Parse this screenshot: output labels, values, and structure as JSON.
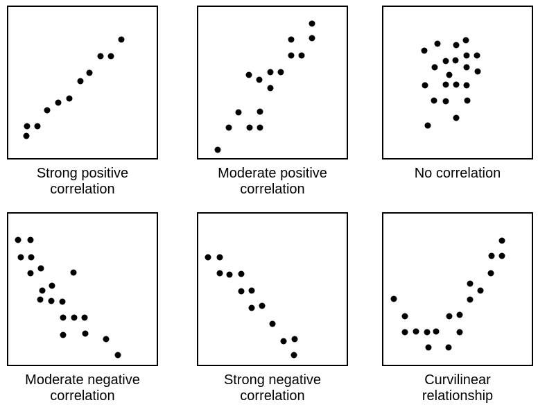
{
  "figure": {
    "description": "Six example scatterplots illustrating types of correlation",
    "background_color": "#ffffff",
    "border_color": "#000000",
    "dot_color": "#000000"
  },
  "chart_data": [
    {
      "type": "scatter",
      "title": "Strong positive correlation",
      "xlabel": "",
      "ylabel": "",
      "x_range": [
        0,
        100
      ],
      "y_range": [
        0,
        100
      ],
      "axes_shown": false,
      "grid": false,
      "points": [
        [
          12.0,
          14.9
        ],
        [
          12.5,
          21.3
        ],
        [
          19.4,
          21.3
        ],
        [
          26.4,
          31.7
        ],
        [
          33.8,
          36.7
        ],
        [
          41.2,
          39.4
        ],
        [
          48.6,
          50.7
        ],
        [
          54.6,
          56.6
        ],
        [
          62.0,
          67.4
        ],
        [
          69.0,
          67.4
        ],
        [
          76.4,
          78.3
        ]
      ]
    },
    {
      "type": "scatter",
      "title": "Moderate positive correlation",
      "xlabel": "",
      "ylabel": "",
      "x_range": [
        0,
        100
      ],
      "y_range": [
        0,
        100
      ],
      "axes_shown": false,
      "grid": false,
      "points": [
        [
          13.0,
          5.4
        ],
        [
          20.5,
          20.4
        ],
        [
          27.0,
          30.3
        ],
        [
          34.4,
          20.4
        ],
        [
          41.4,
          20.4
        ],
        [
          41.4,
          30.8
        ],
        [
          34.0,
          55.2
        ],
        [
          40.9,
          52.0
        ],
        [
          48.4,
          46.2
        ],
        [
          48.4,
          57.0
        ],
        [
          55.8,
          57.0
        ],
        [
          62.8,
          67.9
        ],
        [
          69.8,
          67.9
        ],
        [
          62.8,
          78.3
        ],
        [
          76.7,
          79.2
        ],
        [
          76.7,
          89.1
        ]
      ]
    },
    {
      "type": "scatter",
      "title": "No correlation",
      "xlabel": "",
      "ylabel": "",
      "x_range": [
        0,
        100
      ],
      "y_range": [
        0,
        100
      ],
      "axes_shown": false,
      "grid": false,
      "points": [
        [
          27.6,
          70.9
        ],
        [
          36.4,
          75.9
        ],
        [
          49.1,
          75.0
        ],
        [
          55.6,
          78.2
        ],
        [
          56.1,
          67.7
        ],
        [
          63.1,
          67.7
        ],
        [
          42.1,
          64.1
        ],
        [
          48.6,
          64.5
        ],
        [
          34.6,
          60.0
        ],
        [
          56.1,
          60.0
        ],
        [
          63.6,
          57.3
        ],
        [
          44.4,
          55.0
        ],
        [
          28.0,
          48.2
        ],
        [
          42.1,
          48.6
        ],
        [
          49.1,
          48.6
        ],
        [
          56.1,
          48.2
        ],
        [
          34.1,
          38.2
        ],
        [
          42.1,
          37.7
        ],
        [
          56.5,
          38.2
        ],
        [
          49.1,
          26.8
        ],
        [
          29.9,
          21.4
        ]
      ]
    },
    {
      "type": "scatter",
      "title": "Moderate negative correlation",
      "xlabel": "",
      "ylabel": "",
      "x_range": [
        0,
        100
      ],
      "y_range": [
        0,
        100
      ],
      "axes_shown": false,
      "grid": false,
      "points": [
        [
          6.5,
          82.4
        ],
        [
          15.0,
          82.4
        ],
        [
          8.4,
          71.0
        ],
        [
          15.4,
          71.0
        ],
        [
          22.0,
          63.8
        ],
        [
          15.0,
          60.6
        ],
        [
          43.9,
          61.1
        ],
        [
          29.4,
          52.5
        ],
        [
          22.9,
          48.9
        ],
        [
          21.5,
          43.0
        ],
        [
          29.0,
          42.1
        ],
        [
          36.4,
          41.6
        ],
        [
          36.9,
          31.2
        ],
        [
          44.4,
          31.2
        ],
        [
          51.4,
          31.2
        ],
        [
          36.9,
          19.9
        ],
        [
          51.9,
          20.8
        ],
        [
          65.9,
          17.2
        ],
        [
          73.8,
          6.3
        ]
      ]
    },
    {
      "type": "scatter",
      "title": "Strong negative correlation",
      "xlabel": "",
      "ylabel": "",
      "x_range": [
        0,
        100
      ],
      "y_range": [
        0,
        100
      ],
      "axes_shown": false,
      "grid": false,
      "points": [
        [
          6.6,
          71.0
        ],
        [
          14.6,
          71.0
        ],
        [
          14.6,
          60.6
        ],
        [
          21.1,
          59.7
        ],
        [
          29.1,
          60.2
        ],
        [
          29.1,
          48.4
        ],
        [
          36.2,
          48.9
        ],
        [
          36.2,
          37.6
        ],
        [
          43.2,
          38.9
        ],
        [
          49.8,
          27.1
        ],
        [
          57.7,
          15.8
        ],
        [
          64.8,
          17.2
        ],
        [
          64.3,
          6.3
        ]
      ]
    },
    {
      "type": "scatter",
      "title": "Curvilinear relationship",
      "xlabel": "",
      "ylabel": "",
      "x_range": [
        0,
        100
      ],
      "y_range": [
        0,
        100
      ],
      "axes_shown": false,
      "grid": false,
      "points": [
        [
          7.0,
          43.4
        ],
        [
          14.4,
          32.1
        ],
        [
          14.4,
          21.7
        ],
        [
          21.9,
          22.2
        ],
        [
          29.3,
          21.7
        ],
        [
          30.2,
          11.3
        ],
        [
          35.3,
          22.2
        ],
        [
          43.7,
          11.3
        ],
        [
          44.2,
          32.1
        ],
        [
          51.6,
          33.0
        ],
        [
          51.6,
          21.7
        ],
        [
          58.6,
          43.0
        ],
        [
          58.6,
          53.8
        ],
        [
          65.6,
          49.3
        ],
        [
          72.6,
          60.6
        ],
        [
          73.0,
          71.9
        ],
        [
          80.0,
          71.9
        ],
        [
          80.0,
          81.9
        ]
      ]
    }
  ]
}
